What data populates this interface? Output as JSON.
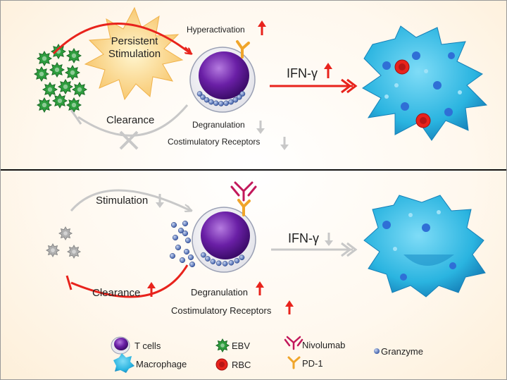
{
  "top_panel": {
    "stimulus_label_line1": "Persistent",
    "stimulus_label_line2": "Stimulation",
    "hyperactivation": "Hyperactivation",
    "ifn": "IFN-γ",
    "clearance": "Clearance",
    "degranulation": "Degranulation",
    "costimulatory": "Costimulatory Receptors"
  },
  "bottom_panel": {
    "stimulation": "Stimulation",
    "ifn": "IFN-γ",
    "clearance": "Clearance",
    "degranulation": "Degranulation",
    "costimulatory": "Costimulatory Receptors"
  },
  "legend": {
    "t_cells": "T cells",
    "macrophage": "Macrophage",
    "ebv": "EBV",
    "rbc": "RBC",
    "nivolumab": "Nivolumab",
    "pd1": "PD-1",
    "granzyme": "Granzyme"
  },
  "colors": {
    "red_arrow": "#e8231c",
    "grey_arrow": "#c8c8c8",
    "tcell": "#6a1fa6",
    "macrophage": "#2ab4e0",
    "ebv": "#2e9e3e",
    "nivolumab": "#c2185b",
    "pd1": "#f0a52a"
  }
}
